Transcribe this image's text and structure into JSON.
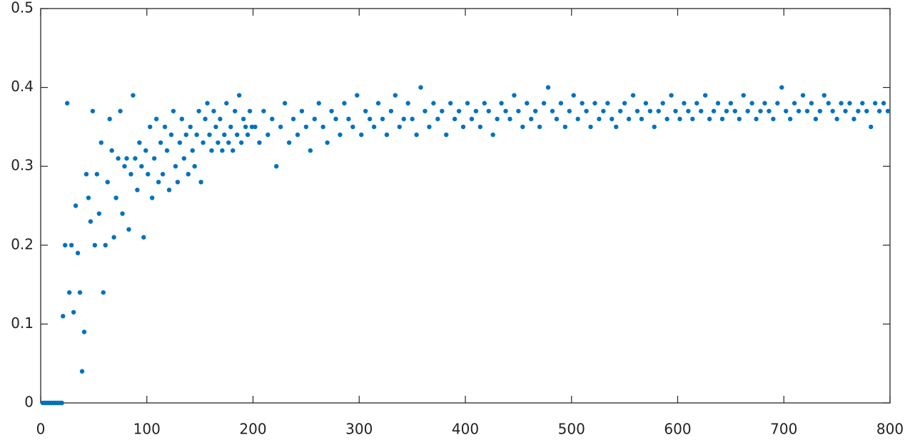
{
  "chart_data": {
    "type": "scatter",
    "color": "#0072bd",
    "xlim": [
      0,
      800
    ],
    "ylim": [
      0,
      0.5
    ],
    "xticks": [
      0,
      100,
      200,
      300,
      400,
      500,
      600,
      700,
      800
    ],
    "yticks": [
      0,
      0.1,
      0.2,
      0.3,
      0.4,
      0.5
    ],
    "x": [
      2,
      4,
      6,
      8,
      10,
      12,
      14,
      16,
      18,
      20,
      21,
      23,
      25,
      27,
      29,
      31,
      33,
      35,
      37,
      39,
      41,
      43,
      45,
      47,
      49,
      51,
      53,
      55,
      57,
      59,
      61,
      63,
      65,
      67,
      69,
      71,
      73,
      75,
      77,
      79,
      81,
      83,
      85,
      87,
      89,
      91,
      93,
      95,
      97,
      99,
      101,
      103,
      105,
      107,
      109,
      111,
      113,
      115,
      117,
      119,
      121,
      123,
      125,
      127,
      129,
      131,
      133,
      135,
      137,
      139,
      141,
      143,
      145,
      147,
      149,
      151,
      153,
      155,
      157,
      159,
      161,
      163,
      165,
      167,
      169,
      171,
      173,
      175,
      177,
      179,
      181,
      183,
      185,
      187,
      189,
      191,
      193,
      195,
      197,
      199,
      202,
      206,
      210,
      214,
      218,
      222,
      226,
      230,
      234,
      238,
      242,
      246,
      250,
      254,
      258,
      262,
      266,
      270,
      274,
      278,
      282,
      286,
      290,
      294,
      298,
      302,
      306,
      310,
      314,
      318,
      322,
      326,
      330,
      334,
      338,
      342,
      346,
      350,
      354,
      358,
      362,
      366,
      370,
      374,
      378,
      382,
      386,
      390,
      394,
      398,
      402,
      406,
      410,
      414,
      418,
      422,
      426,
      430,
      434,
      438,
      442,
      446,
      450,
      454,
      458,
      462,
      466,
      470,
      474,
      478,
      482,
      486,
      490,
      494,
      498,
      502,
      506,
      510,
      514,
      518,
      522,
      526,
      530,
      534,
      538,
      542,
      546,
      550,
      554,
      558,
      562,
      566,
      570,
      574,
      578,
      582,
      586,
      590,
      594,
      598,
      602,
      606,
      610,
      614,
      618,
      622,
      626,
      630,
      634,
      638,
      642,
      646,
      650,
      654,
      658,
      662,
      666,
      670,
      674,
      678,
      682,
      686,
      690,
      694,
      698,
      702,
      706,
      710,
      714,
      718,
      722,
      726,
      730,
      734,
      738,
      742,
      746,
      750,
      754,
      758,
      762,
      766,
      770,
      774,
      778,
      782,
      786,
      790,
      794,
      798
    ],
    "values": [
      0,
      0,
      0,
      0,
      0,
      0,
      0,
      0,
      0,
      0,
      0.11,
      0.2,
      0.38,
      0.14,
      0.2,
      0.115,
      0.25,
      0.19,
      0.14,
      0.04,
      0.09,
      0.29,
      0.26,
      0.23,
      0.37,
      0.2,
      0.29,
      0.24,
      0.33,
      0.14,
      0.2,
      0.28,
      0.36,
      0.32,
      0.21,
      0.26,
      0.31,
      0.37,
      0.24,
      0.3,
      0.31,
      0.22,
      0.29,
      0.39,
      0.31,
      0.27,
      0.33,
      0.3,
      0.21,
      0.32,
      0.29,
      0.35,
      0.26,
      0.31,
      0.36,
      0.28,
      0.33,
      0.29,
      0.35,
      0.32,
      0.27,
      0.34,
      0.37,
      0.3,
      0.28,
      0.33,
      0.36,
      0.31,
      0.34,
      0.29,
      0.35,
      0.32,
      0.3,
      0.34,
      0.37,
      0.28,
      0.33,
      0.36,
      0.38,
      0.34,
      0.32,
      0.37,
      0.35,
      0.33,
      0.36,
      0.32,
      0.34,
      0.38,
      0.33,
      0.35,
      0.32,
      0.37,
      0.34,
      0.39,
      0.33,
      0.36,
      0.35,
      0.34,
      0.37,
      0.35,
      0.35,
      0.33,
      0.37,
      0.34,
      0.36,
      0.3,
      0.35,
      0.38,
      0.33,
      0.36,
      0.34,
      0.37,
      0.35,
      0.32,
      0.36,
      0.38,
      0.35,
      0.33,
      0.37,
      0.36,
      0.34,
      0.38,
      0.36,
      0.35,
      0.39,
      0.34,
      0.37,
      0.36,
      0.35,
      0.38,
      0.36,
      0.34,
      0.37,
      0.39,
      0.35,
      0.36,
      0.38,
      0.36,
      0.34,
      0.4,
      0.37,
      0.35,
      0.38,
      0.36,
      0.37,
      0.34,
      0.38,
      0.36,
      0.37,
      0.35,
      0.38,
      0.36,
      0.37,
      0.35,
      0.38,
      0.37,
      0.34,
      0.36,
      0.38,
      0.37,
      0.36,
      0.39,
      0.37,
      0.35,
      0.38,
      0.36,
      0.37,
      0.35,
      0.38,
      0.4,
      0.37,
      0.36,
      0.38,
      0.35,
      0.37,
      0.39,
      0.36,
      0.38,
      0.37,
      0.35,
      0.38,
      0.36,
      0.37,
      0.38,
      0.36,
      0.35,
      0.37,
      0.38,
      0.36,
      0.39,
      0.37,
      0.36,
      0.38,
      0.37,
      0.35,
      0.37,
      0.38,
      0.36,
      0.39,
      0.37,
      0.36,
      0.38,
      0.37,
      0.36,
      0.38,
      0.37,
      0.39,
      0.36,
      0.37,
      0.38,
      0.36,
      0.37,
      0.38,
      0.37,
      0.36,
      0.39,
      0.37,
      0.38,
      0.36,
      0.37,
      0.38,
      0.37,
      0.36,
      0.38,
      0.4,
      0.37,
      0.36,
      0.38,
      0.37,
      0.39,
      0.37,
      0.38,
      0.36,
      0.37,
      0.39,
      0.38,
      0.37,
      0.36,
      0.38,
      0.37,
      0.38,
      0.36,
      0.37,
      0.38,
      0.37,
      0.35,
      0.38,
      0.37,
      0.38,
      0.37
    ]
  }
}
